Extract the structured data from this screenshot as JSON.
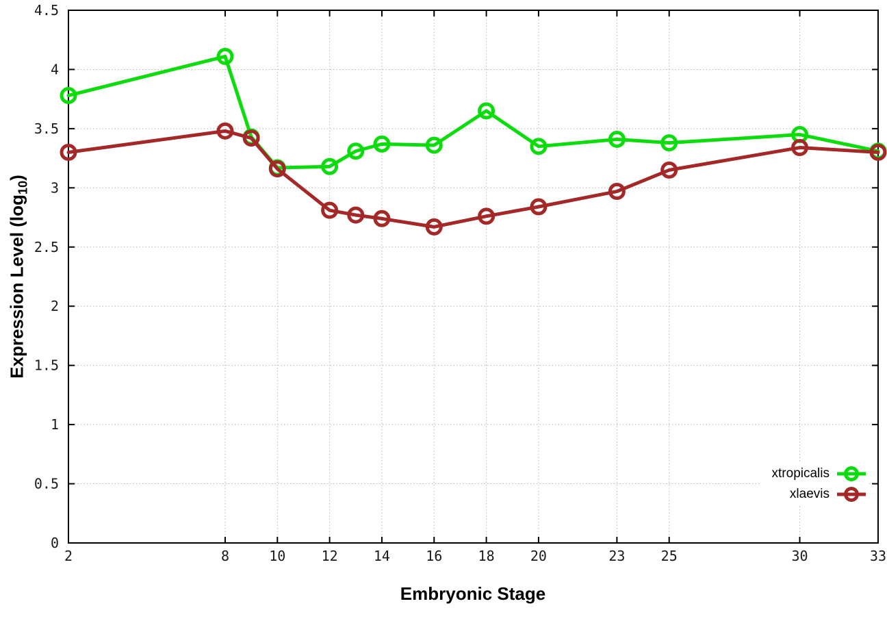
{
  "chart_data": {
    "type": "line",
    "title": "",
    "xlabel": "Embryonic Stage",
    "ylabel_prefix": "Expression Level (log",
    "ylabel_sub": "10",
    "ylabel_suffix": ")",
    "x": [
      2,
      8,
      9,
      10,
      12,
      13,
      14,
      16,
      18,
      20,
      23,
      25,
      30,
      33
    ],
    "series": [
      {
        "name": "xtropicalis",
        "color": "#0cdc0c",
        "values": [
          3.78,
          4.11,
          3.43,
          3.17,
          3.18,
          3.31,
          3.37,
          3.36,
          3.65,
          3.35,
          3.41,
          3.38,
          3.45,
          3.31
        ]
      },
      {
        "name": "xlaevis",
        "color": "#a52828",
        "values": [
          3.3,
          3.48,
          3.42,
          3.16,
          2.81,
          2.77,
          2.74,
          2.67,
          2.76,
          2.84,
          2.97,
          3.15,
          3.34,
          3.3
        ]
      }
    ],
    "xticks": [
      "2",
      "8",
      "10",
      "12",
      "14",
      "16",
      "18",
      "20",
      "23",
      "25",
      "30",
      "33"
    ],
    "yticks": [
      "0",
      "0.5",
      "1",
      "1.5",
      "2",
      "2.5",
      "3",
      "3.5",
      "4",
      "4.5"
    ],
    "xlim": [
      2,
      33
    ],
    "ylim": [
      0,
      4.5
    ],
    "grid": true,
    "legend_position": "bottom-right",
    "marker": "open-circle",
    "grid_color": "#b5b5b5",
    "border_color": "#000000",
    "tick_label_color": "#1a1a1a",
    "background": "#ffffff"
  }
}
